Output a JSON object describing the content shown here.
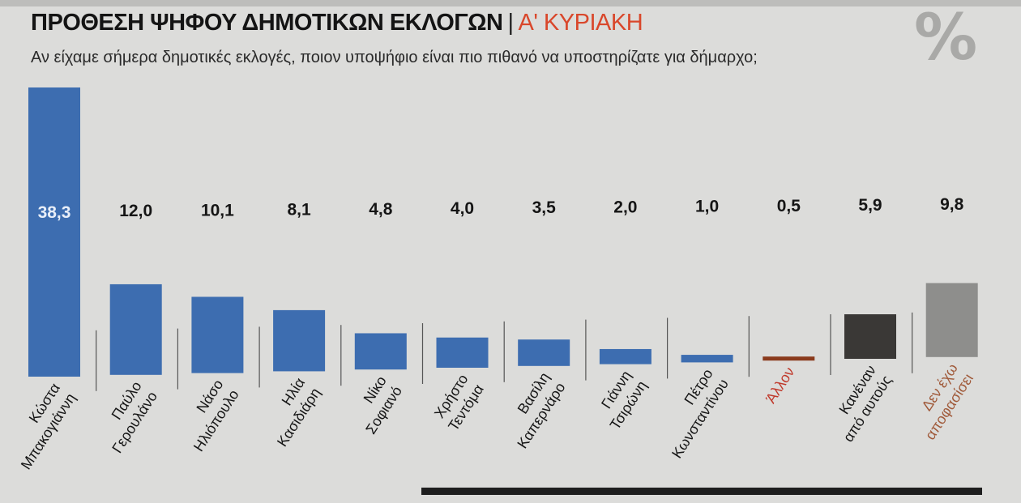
{
  "header": {
    "title": "ΠΡΟΘΕΣΗ ΨΗΦΟΥ ΔΗΜΟΤΙΚΩΝ ΕΚΛΟΓΩΝ",
    "separator": "|",
    "subtitle": "Α' ΚΥΡΙΑΚΗ",
    "question": "Αν είχαμε σήμερα δημοτικές εκλογές, ποιον υποψήφιο είναι πιο πιθανό να υποστηρίζατε για δήμαρχο;",
    "unit_symbol": "%"
  },
  "colors": {
    "candidate": "#3d6db0",
    "other": "#8a3a1c",
    "none": "#3a3836",
    "undecided": "#8e8e8c",
    "other_label": "#c0392b",
    "undecided_label": "#a05a3a"
  },
  "chart_data": {
    "type": "bar",
    "title": "ΠΡΟΘΕΣΗ ΨΗΦΟΥ ΔΗΜΟΤΙΚΩΝ ΕΚΛΟΓΩΝ",
    "subtitle": "Α' ΚΥΡΙΑΚΗ",
    "ylabel": "%",
    "ylim": [
      0,
      40
    ],
    "categories": [
      [
        "Κώστα",
        "Μπακογιάννη"
      ],
      [
        "Παύλο",
        "Γερουλάνο"
      ],
      [
        "Νάσο",
        "Ηλιόπουλο"
      ],
      [
        "Ηλία",
        "Κασιδιάρη"
      ],
      [
        "Νίκο",
        "Σοφιανό"
      ],
      [
        "Χρήστο",
        "Τεντόμα"
      ],
      [
        "Βασίλη",
        "Καπερνάρο"
      ],
      [
        "Γιάννη",
        "Τσιρώνη"
      ],
      [
        "Πέτρο",
        "Κωνσταντίνου"
      ],
      [
        "Άλλον"
      ],
      [
        "Κανέναν",
        "από αυτούς"
      ],
      [
        "Δεν έχω",
        "αποφασίσει"
      ]
    ],
    "values": [
      38.3,
      12.0,
      10.1,
      8.1,
      4.8,
      4.0,
      3.5,
      2.0,
      1.0,
      0.5,
      5.9,
      9.8
    ],
    "value_labels": [
      "38,3",
      "12,0",
      "10,1",
      "8,1",
      "4,8",
      "4,0",
      "3,5",
      "2,0",
      "1,0",
      "0,5",
      "5,9",
      "9,8"
    ],
    "bar_kinds": [
      "candidate",
      "candidate",
      "candidate",
      "candidate",
      "candidate",
      "candidate",
      "candidate",
      "candidate",
      "candidate",
      "other",
      "none",
      "undecided"
    ],
    "grid": false,
    "legend": "none"
  }
}
